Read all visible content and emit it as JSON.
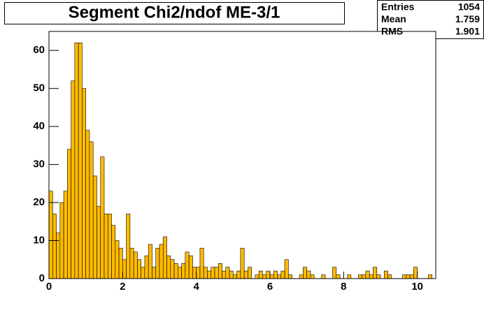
{
  "chart_data": {
    "type": "histogram",
    "title": "Segment Chi2/ndof ME-3/1",
    "stats": {
      "labels": [
        "Entries",
        "Mean",
        "RMS"
      ],
      "values": [
        1054,
        1.759,
        1.901
      ]
    },
    "bins": [
      0,
      0.1,
      0.2,
      0.3,
      0.4,
      0.5,
      0.6,
      0.7,
      0.8,
      0.9,
      1,
      1.1,
      1.2,
      1.3,
      1.4,
      1.5,
      1.6,
      1.7,
      1.8,
      1.9,
      2,
      2.1,
      2.2,
      2.3,
      2.4,
      2.5,
      2.6,
      2.7,
      2.8,
      2.9,
      3,
      3.1,
      3.2,
      3.3,
      3.4,
      3.5,
      3.6,
      3.7,
      3.8,
      3.9,
      4,
      4.1,
      4.2,
      4.3,
      4.4,
      4.5,
      4.6,
      4.7,
      4.8,
      4.9,
      5,
      5.1,
      5.2,
      5.3,
      5.4,
      5.5,
      5.6,
      5.7,
      5.8,
      5.9,
      6,
      6.1,
      6.2,
      6.3,
      6.4,
      6.5,
      6.6,
      6.7,
      6.8,
      6.9,
      7,
      7.1,
      7.2,
      7.3,
      7.4,
      7.5,
      7.6,
      7.7,
      7.8,
      7.9,
      8,
      8.1,
      8.2,
      8.3,
      8.4,
      8.5,
      8.6,
      8.7,
      8.8,
      8.9,
      9,
      9.1,
      9.2,
      9.3,
      9.4,
      9.5,
      9.6,
      9.7,
      9.8,
      9.9,
      10,
      10.1,
      10.2,
      10.3,
      10.4,
      10.5
    ],
    "counts": [
      23,
      17,
      12,
      20,
      23,
      34,
      52,
      62,
      62,
      50,
      39,
      36,
      27,
      19,
      32,
      17,
      17,
      14,
      10,
      8,
      5,
      17,
      8,
      7,
      5,
      3,
      6,
      9,
      3,
      8,
      9,
      11,
      6,
      5,
      4,
      3,
      4,
      7,
      6,
      3,
      3,
      8,
      3,
      2,
      3,
      3,
      4,
      2,
      3,
      2,
      1,
      2,
      8,
      2,
      3,
      0,
      1,
      2,
      1,
      2,
      1,
      2,
      1,
      2,
      5,
      1,
      0,
      0,
      1,
      3,
      2,
      1,
      0,
      0,
      1,
      0,
      0,
      3,
      1,
      0,
      0,
      1,
      0,
      0,
      1,
      1,
      2,
      1,
      3,
      1,
      0,
      2,
      1,
      0,
      0,
      0,
      1,
      1,
      1,
      3,
      0,
      0,
      0,
      1,
      0
    ],
    "color": "#ffbb00",
    "xlim": [
      0,
      10.5
    ],
    "xticks": [
      0,
      2,
      4,
      6,
      8,
      10
    ],
    "ylim": [
      0,
      65
    ],
    "yticks": [
      0,
      10,
      20,
      30,
      40,
      50,
      60
    ]
  }
}
